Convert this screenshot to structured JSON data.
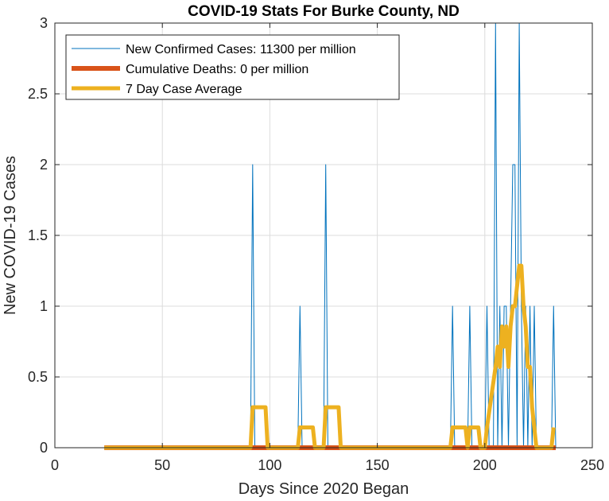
{
  "chart_data": {
    "type": "line",
    "title": "COVID-19 Stats For Burke County, ND",
    "xlabel": "Days Since 2020 Began",
    "ylabel": "New COVID-19 Cases",
    "xlim": [
      0,
      250
    ],
    "ylim": [
      0,
      3
    ],
    "xticks": [
      0,
      50,
      100,
      150,
      200,
      250
    ],
    "yticks": [
      0,
      0.5,
      1,
      1.5,
      2,
      2.5,
      3
    ],
    "xtick_labels": [
      "0",
      "50",
      "100",
      "150",
      "200",
      "250"
    ],
    "ytick_labels": [
      "0",
      "0.5",
      "1",
      "1.5",
      "2",
      "2.5",
      "3"
    ],
    "grid": true,
    "legend_position": "top-left",
    "series": [
      {
        "name": "New Confirmed Cases: 11300 per million",
        "color": "#0072BD",
        "x": [
          23,
          91,
          92,
          93,
          113,
          114,
          115,
          125,
          126,
          127,
          184,
          185,
          186,
          192,
          193,
          194,
          200,
          201,
          202,
          204,
          205,
          206,
          207,
          208,
          209,
          210,
          211,
          212,
          213,
          214,
          215,
          216,
          217,
          218,
          219,
          220,
          221,
          222,
          223,
          224,
          225,
          231,
          232,
          233
        ],
        "y": [
          0,
          0,
          2,
          0,
          0,
          1,
          0,
          0,
          2,
          0,
          0,
          1,
          0,
          0,
          1,
          0,
          0,
          1,
          0,
          0,
          3,
          0,
          1,
          0,
          1,
          1,
          0,
          1,
          2,
          2,
          0,
          3,
          1,
          0,
          1,
          0,
          1,
          0,
          1,
          0,
          0,
          0,
          1,
          0
        ]
      },
      {
        "name": "Cumulative Deaths: 0 per million",
        "color": "#D95319",
        "x": [
          23,
          233
        ],
        "y": [
          0,
          0
        ]
      },
      {
        "name": "7 Day Case Average",
        "color": "#EDB120",
        "x": [
          23,
          91,
          92,
          98,
          99,
          113,
          114,
          120,
          121,
          125,
          126,
          132,
          133,
          184,
          185,
          191,
          192,
          193,
          197,
          198,
          199,
          200,
          201,
          205,
          206,
          207,
          208,
          209,
          210,
          211,
          212,
          213,
          214,
          216,
          217,
          218,
          219,
          220,
          221,
          222,
          223,
          224,
          225,
          231,
          232
        ],
        "y": [
          0,
          0,
          0.286,
          0.286,
          0,
          0,
          0.143,
          0.143,
          0,
          0,
          0.286,
          0.286,
          0,
          0,
          0.143,
          0.143,
          0,
          0.143,
          0.143,
          0,
          0,
          0,
          0.143,
          0.571,
          0.714,
          0.571,
          0.857,
          0.714,
          0.857,
          0.571,
          0.857,
          1.0,
          1.0,
          1.286,
          1.286,
          1.0,
          0.857,
          0.571,
          0.571,
          0.286,
          0.143,
          0,
          0,
          0,
          0.143
        ]
      }
    ]
  }
}
